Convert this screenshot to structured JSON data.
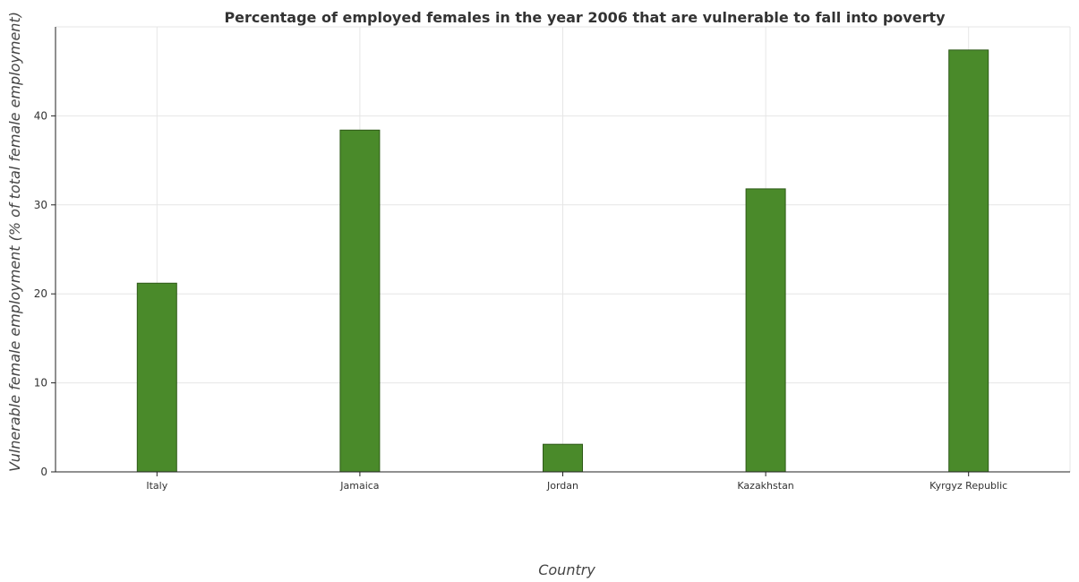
{
  "chart_data": {
    "type": "bar",
    "title": "Percentage of employed females in the year 2006 that are vulnerable to fall into poverty",
    "xlabel": "Country",
    "ylabel": "Vulnerable female employment (% of total female employment)",
    "categories": [
      "Italy",
      "Jamaica",
      "Jordan",
      "Kazakhstan",
      "Kyrgyz Republic"
    ],
    "values": [
      21.2,
      38.4,
      3.1,
      31.8,
      47.4
    ],
    "ylim": [
      0,
      50
    ],
    "yticks": [
      0,
      10,
      20,
      30,
      40
    ],
    "ytick_labels": [
      "0",
      "10",
      "20",
      "30",
      "40"
    ],
    "grid": true,
    "bar_color": "#4a8a2a"
  }
}
